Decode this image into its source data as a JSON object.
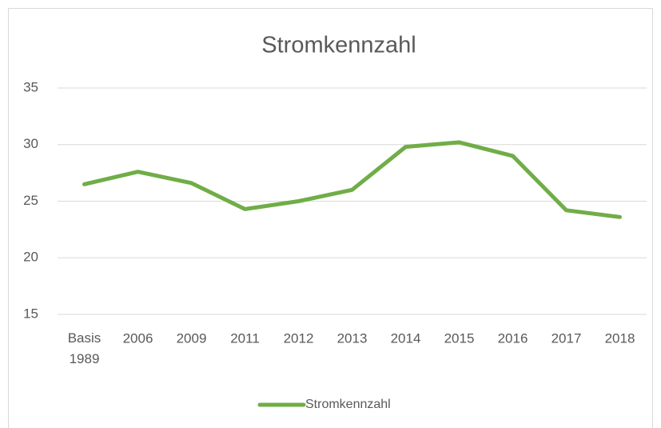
{
  "chart_data": {
    "type": "line",
    "title": "Stromkennzahl",
    "categories": [
      "Basis 1989",
      "2006",
      "2009",
      "2011",
      "2012",
      "2013",
      "2014",
      "2015",
      "2016",
      "2017",
      "2018"
    ],
    "series": [
      {
        "name": "Stromkennzahl",
        "color": "#70ad47",
        "values": [
          26.5,
          27.6,
          26.6,
          24.3,
          25.0,
          26.0,
          29.8,
          30.2,
          29.0,
          24.2,
          23.6
        ]
      }
    ],
    "ylim": [
      15,
      35
    ],
    "yticks": [
      15,
      20,
      25,
      30,
      35
    ],
    "grid": true,
    "legend": "bottom"
  }
}
